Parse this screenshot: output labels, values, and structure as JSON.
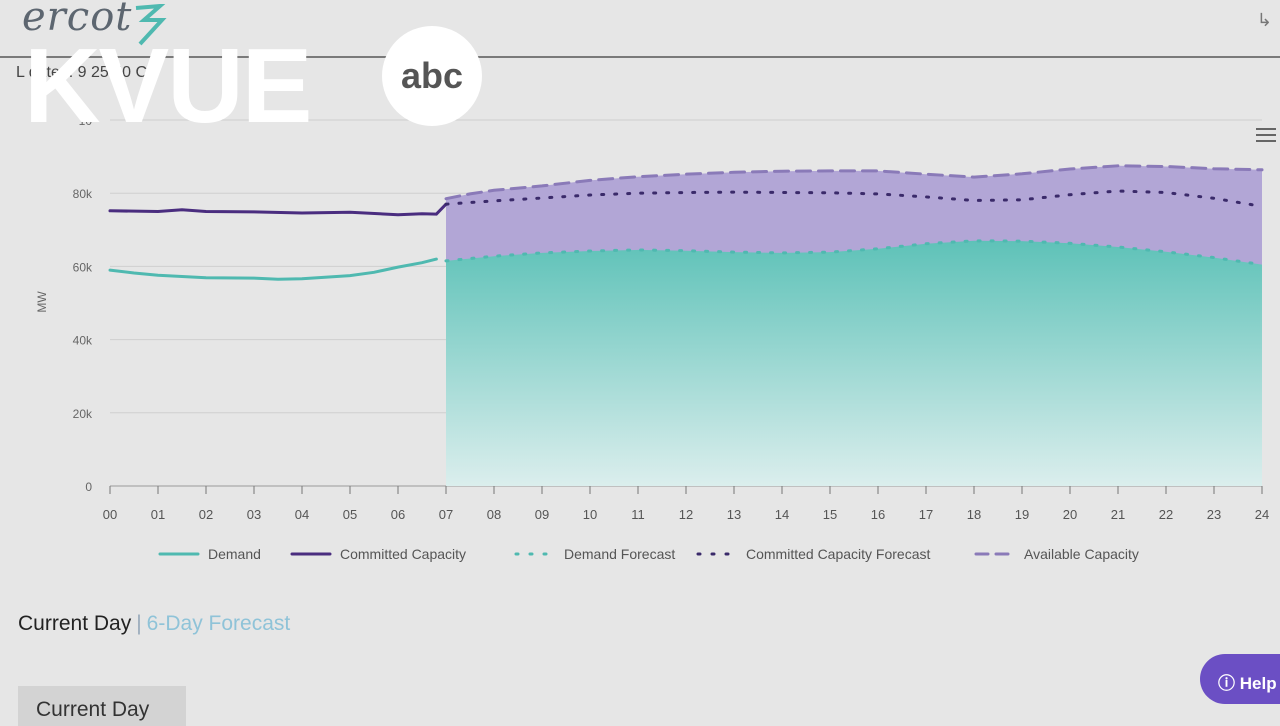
{
  "header": {
    "logo_text": "ercot",
    "updated_text": "L    dated:      9     25       50 C",
    "menu_icon": "hamburger-menu-icon",
    "logo_icon": "ercot-logo-mark-icon"
  },
  "watermark": {
    "brand": "KVUE",
    "network": "abc"
  },
  "chart_data": {
    "type": "line",
    "ylabel": "MW",
    "ylim": [
      0,
      100000
    ],
    "yticks": [
      "0",
      "20k",
      "40k",
      "60k",
      "80k",
      "10"
    ],
    "xlim": [
      0,
      24
    ],
    "xticks": [
      "00",
      "01",
      "02",
      "03",
      "04",
      "05",
      "06",
      "07",
      "08",
      "09",
      "10",
      "11",
      "12",
      "13",
      "14",
      "15",
      "16",
      "17",
      "18",
      "19",
      "20",
      "21",
      "22",
      "23",
      "24"
    ],
    "legend_position": "bottom",
    "series": [
      {
        "name": "Demand",
        "style": "solid",
        "color": "#4fb9b0",
        "x": [
          0,
          0.5,
          1,
          2,
          3,
          3.5,
          4,
          5,
          5.5,
          6,
          6.5,
          6.8
        ],
        "y": [
          59000,
          58200,
          57600,
          56900,
          56800,
          56500,
          56600,
          57500,
          58400,
          59800,
          61000,
          62000
        ]
      },
      {
        "name": "Committed Capacity",
        "style": "solid",
        "color": "#4a2d7f",
        "x": [
          0,
          1,
          1.5,
          2,
          3,
          4,
          5,
          6,
          6.5,
          6.8,
          7
        ],
        "y": [
          75200,
          75000,
          75500,
          75000,
          74900,
          74600,
          74800,
          74100,
          74400,
          74300,
          77000
        ]
      },
      {
        "name": "Demand Forecast",
        "style": "dotted",
        "color": "#4fb9b0",
        "x": [
          7,
          8,
          9,
          10,
          11,
          12,
          13,
          14,
          15,
          16,
          17,
          18,
          19,
          20,
          21,
          22,
          23,
          24
        ],
        "y": [
          61500,
          62800,
          63700,
          64200,
          64500,
          64300,
          63900,
          63700,
          63900,
          64800,
          66200,
          67000,
          66900,
          66300,
          65300,
          64000,
          62400,
          60500
        ]
      },
      {
        "name": "Committed Capacity Forecast",
        "style": "dotted",
        "color": "#3a2a6a",
        "x": [
          7,
          8,
          9,
          10,
          11,
          12,
          13,
          14,
          15,
          16,
          17,
          18,
          19,
          20,
          21,
          22,
          23,
          24
        ],
        "y": [
          77000,
          77900,
          78700,
          79500,
          80000,
          80200,
          80300,
          80200,
          80100,
          79800,
          79000,
          78000,
          78200,
          79600,
          80600,
          80200,
          78600,
          76400
        ]
      },
      {
        "name": "Available Capacity",
        "style": "dashed",
        "color": "#8a7ab8",
        "x": [
          7,
          7.5,
          8,
          9,
          10,
          11,
          12,
          13,
          14,
          15,
          16,
          17,
          18,
          19,
          20,
          21,
          22,
          23,
          24
        ],
        "y": [
          78500,
          79800,
          80800,
          82000,
          83500,
          84500,
          85200,
          85700,
          86000,
          86100,
          86100,
          85200,
          84400,
          85300,
          86600,
          87500,
          87300,
          86700,
          86400
        ]
      }
    ]
  },
  "tabs": {
    "current": "Current Day",
    "separator": "|",
    "forecast": "6-Day Forecast"
  },
  "current_button": "Current Day",
  "help": {
    "label": "Help",
    "icon": "question-circle-icon"
  }
}
